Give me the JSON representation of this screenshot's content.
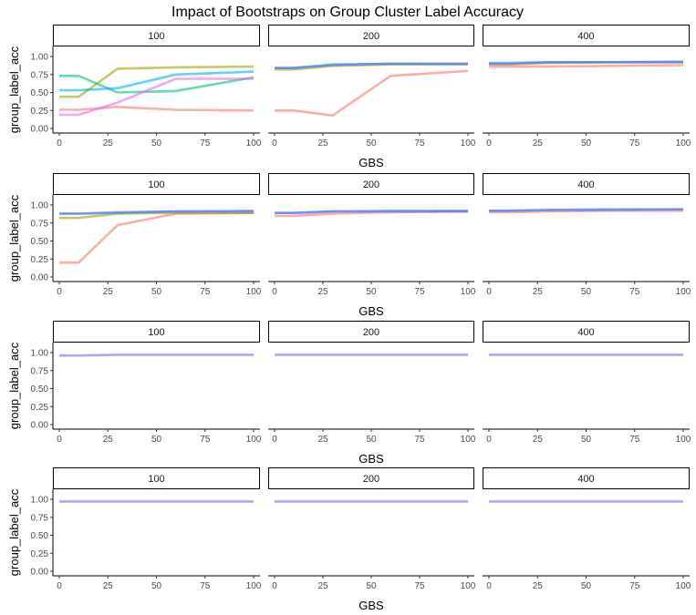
{
  "chart_data": {
    "type": "line",
    "title": "Impact of Bootstraps on Group Cluster Label Accuracy",
    "xlabel": "GBS",
    "ylabel": "group_label_acc",
    "xlim": [
      0,
      100
    ],
    "ylim": [
      0,
      1
    ],
    "x_ticks": [
      "0",
      "25",
      "50",
      "75",
      "100"
    ],
    "y_ticks": [
      "0.00",
      "0.25",
      "0.50",
      "0.75",
      "1.00"
    ],
    "facet_labels": [
      "100",
      "200",
      "400"
    ],
    "grid": false,
    "legend": "none",
    "series_colors": [
      "#f8766d",
      "#a3a500",
      "#00bf7d",
      "#00b0f6",
      "#e76bf3",
      "#7b68ee"
    ],
    "line_opacity": 0.6,
    "x": [
      0,
      10,
      30,
      60,
      100
    ],
    "rows": [
      [
        {
          "facet": "100",
          "series": [
            {
              "color": "#f8766d",
              "values": [
                0.26,
                0.26,
                0.3,
                0.26,
                0.25
              ]
            },
            {
              "color": "#a3a500",
              "values": [
                0.44,
                0.44,
                0.83,
                0.85,
                0.86
              ]
            },
            {
              "color": "#00bf7d",
              "values": [
                0.73,
                0.73,
                0.5,
                0.52,
                0.71
              ]
            },
            {
              "color": "#00b0f6",
              "values": [
                0.53,
                0.53,
                0.56,
                0.75,
                0.79
              ]
            },
            {
              "color": "#e76bf3",
              "values": [
                0.19,
                0.19,
                0.36,
                0.69,
                0.69
              ]
            }
          ]
        },
        {
          "facet": "200",
          "series": [
            {
              "color": "#f8766d",
              "values": [
                0.25,
                0.25,
                0.18,
                0.73,
                0.8
              ]
            },
            {
              "color": "#a3a500",
              "values": [
                0.82,
                0.82,
                0.87,
                0.89,
                0.89
              ]
            },
            {
              "color": "#00b0f6",
              "values": [
                0.84,
                0.84,
                0.89,
                0.9,
                0.9
              ]
            },
            {
              "color": "#7b68ee",
              "values": [
                0.84,
                0.84,
                0.88,
                0.9,
                0.9
              ]
            }
          ]
        },
        {
          "facet": "400",
          "series": [
            {
              "color": "#f8766d",
              "values": [
                0.86,
                0.86,
                0.86,
                0.87,
                0.88
              ]
            },
            {
              "color": "#a3a500",
              "values": [
                0.89,
                0.89,
                0.91,
                0.92,
                0.92
              ]
            },
            {
              "color": "#00b0f6",
              "values": [
                0.91,
                0.91,
                0.92,
                0.92,
                0.93
              ]
            },
            {
              "color": "#7b68ee",
              "values": [
                0.9,
                0.9,
                0.92,
                0.92,
                0.92
              ]
            }
          ]
        }
      ],
      [
        {
          "facet": "100",
          "series": [
            {
              "color": "#f8766d",
              "values": [
                0.2,
                0.2,
                0.72,
                0.88,
                0.89
              ]
            },
            {
              "color": "#a3a500",
              "values": [
                0.82,
                0.82,
                0.88,
                0.89,
                0.89
              ]
            },
            {
              "color": "#00b0f6",
              "values": [
                0.88,
                0.88,
                0.89,
                0.91,
                0.92
              ]
            },
            {
              "color": "#7b68ee",
              "values": [
                0.88,
                0.88,
                0.9,
                0.91,
                0.91
              ]
            }
          ]
        },
        {
          "facet": "200",
          "series": [
            {
              "color": "#f8766d",
              "values": [
                0.85,
                0.85,
                0.88,
                0.9,
                0.91
              ]
            },
            {
              "color": "#00b0f6",
              "values": [
                0.89,
                0.89,
                0.91,
                0.92,
                0.92
              ]
            },
            {
              "color": "#7b68ee",
              "values": [
                0.89,
                0.89,
                0.91,
                0.91,
                0.91
              ]
            }
          ]
        },
        {
          "facet": "400",
          "series": [
            {
              "color": "#f8766d",
              "values": [
                0.9,
                0.9,
                0.91,
                0.92,
                0.92
              ]
            },
            {
              "color": "#00b0f6",
              "values": [
                0.92,
                0.92,
                0.93,
                0.94,
                0.94
              ]
            },
            {
              "color": "#7b68ee",
              "values": [
                0.92,
                0.92,
                0.93,
                0.93,
                0.94
              ]
            }
          ]
        }
      ],
      [
        {
          "facet": "100",
          "series": [
            {
              "color": "#7b68ee",
              "values": [
                0.96,
                0.96,
                0.97,
                0.97,
                0.97
              ]
            }
          ]
        },
        {
          "facet": "200",
          "series": [
            {
              "color": "#7b68ee",
              "values": [
                0.97,
                0.97,
                0.97,
                0.97,
                0.97
              ]
            }
          ]
        },
        {
          "facet": "400",
          "series": [
            {
              "color": "#7b68ee",
              "values": [
                0.97,
                0.97,
                0.97,
                0.97,
                0.97
              ]
            }
          ]
        }
      ],
      [
        {
          "facet": "100",
          "series": [
            {
              "color": "#7b68ee",
              "values": [
                0.97,
                0.97,
                0.97,
                0.97,
                0.97
              ]
            }
          ]
        },
        {
          "facet": "200",
          "series": [
            {
              "color": "#7b68ee",
              "values": [
                0.97,
                0.97,
                0.97,
                0.97,
                0.97
              ]
            }
          ]
        },
        {
          "facet": "400",
          "series": [
            {
              "color": "#7b68ee",
              "values": [
                0.97,
                0.97,
                0.97,
                0.97,
                0.97
              ]
            }
          ]
        }
      ]
    ]
  }
}
